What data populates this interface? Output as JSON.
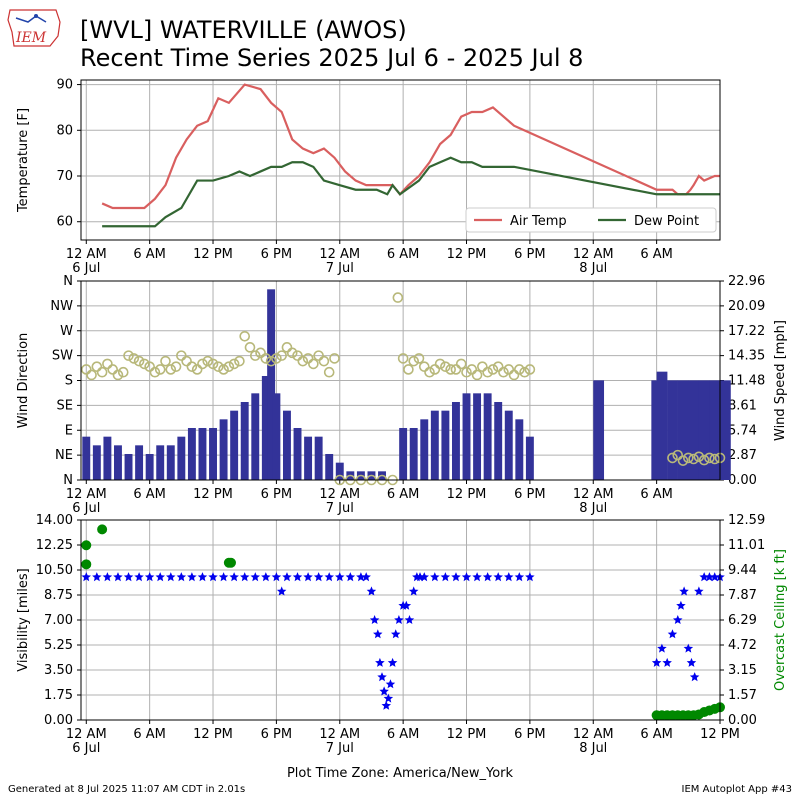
{
  "title_line1": "[WVL] WATERVILLE (AWOS)",
  "title_line2": "Recent Time Series 2025 Jul 6 - 2025 Jul 8",
  "logo_text": "IEM",
  "footer_left": "Generated at 8 Jul 2025 11:07 AM CDT in 2.01s",
  "footer_right": "IEM Autoplot App #43",
  "colors": {
    "air_temp": "#d95f5f",
    "dew_point": "#336633",
    "wind_dir_marker": "#b8b87a",
    "wind_speed_bar": "#333399",
    "visibility": "#0000ee",
    "ceiling": "#008800",
    "grid": "#b0b0b0"
  },
  "time_axis": {
    "label": "Plot Time Zone: America/New_York",
    "tick_labels": [
      "12 AM",
      "6 AM",
      "12 PM",
      "6 PM",
      "12 AM",
      "6 AM",
      "12 PM",
      "6 PM",
      "12 AM",
      "6 AM",
      "12 PM"
    ],
    "day_labels": [
      {
        "hour": 0,
        "text": "6 Jul"
      },
      {
        "hour": 24,
        "text": "7 Jul"
      },
      {
        "hour": 48,
        "text": "8 Jul"
      }
    ]
  },
  "chart_data": [
    {
      "type": "line",
      "ylabel": "Temperature [F]",
      "ylim": [
        56,
        91
      ],
      "yticks": [
        60,
        70,
        80,
        90
      ],
      "xlim": [
        -0.5,
        60
      ],
      "tick_hours": [
        0,
        6,
        12,
        18,
        24,
        30,
        36,
        42,
        48,
        54
      ],
      "grid": true,
      "legend_position": "bottom-right",
      "series": [
        {
          "name": "Air Temp",
          "x": [
            1.5,
            2.5,
            4,
            5.5,
            6.5,
            7.5,
            8.5,
            9.5,
            10.5,
            11.5,
            12.5,
            13.5,
            15,
            16.5,
            17.5,
            18.5,
            19.5,
            20.5,
            21.5,
            22.5,
            23.5,
            24.5,
            25.5,
            26.5,
            27.5,
            29,
            29.7,
            30.5,
            31.5,
            32.5,
            33.5,
            34.5,
            35.5,
            36.5,
            37.5,
            38.5,
            40.5,
            54,
            55.5,
            56,
            56.8,
            57.2,
            57.5,
            58,
            58.5,
            59.5,
            60
          ],
          "y": [
            64,
            63,
            63,
            63,
            65,
            68,
            74,
            78,
            81,
            82,
            87,
            86,
            90,
            89,
            86,
            84,
            78,
            76,
            75,
            76,
            74,
            71,
            69,
            68,
            68,
            68,
            66,
            68,
            70,
            73,
            77,
            79,
            83,
            84,
            84,
            85,
            81,
            67,
            67,
            66,
            66,
            67,
            68,
            70,
            69,
            70,
            70
          ]
        },
        {
          "name": "Dew Point",
          "x": [
            1.5,
            4,
            6.5,
            7.5,
            9,
            10.5,
            12,
            13.5,
            14.5,
            15.5,
            16.5,
            17.5,
            18.5,
            19.5,
            20.5,
            21.5,
            22.5,
            24,
            25.5,
            26.5,
            27.5,
            28.5,
            29,
            29.7,
            31.5,
            32.5,
            33.5,
            34.5,
            35.5,
            36.5,
            37.5,
            38.5,
            40.5,
            54,
            55.5,
            57,
            57.5,
            58.5,
            59.5,
            60
          ],
          "y": [
            59,
            59,
            59,
            61,
            63,
            69,
            69,
            70,
            71,
            70,
            71,
            72,
            72,
            73,
            73,
            72,
            69,
            68,
            67,
            67,
            67,
            66,
            68,
            66,
            69,
            72,
            73,
            74,
            73,
            73,
            72,
            72,
            72,
            66,
            66,
            66,
            66,
            66,
            66,
            66
          ]
        }
      ]
    },
    {
      "type": "bar",
      "ylabel": "Wind Direction",
      "y2label": "Wind Speed [mph]",
      "ylim": [
        0,
        360
      ],
      "yticks": [
        "N",
        "NE",
        "E",
        "SE",
        "S",
        "SW",
        "W",
        "NW",
        "N"
      ],
      "y2lim": [
        0,
        22.96
      ],
      "y2ticks": [
        "0.00",
        "2.87",
        "5.74",
        "8.61",
        "11.48",
        "14.35",
        "17.22",
        "20.09",
        "22.96"
      ],
      "grid": true,
      "series": [
        {
          "name": "Wind Speed",
          "x": [
            0,
            1,
            2,
            3,
            4,
            5,
            6,
            7,
            8,
            9,
            10,
            11,
            12,
            13,
            14,
            15,
            16,
            17,
            17.5,
            18,
            19,
            20,
            21,
            22,
            23,
            24,
            25,
            26,
            27,
            28,
            29,
            30,
            31,
            32,
            33,
            34,
            35,
            36,
            37,
            38,
            39,
            40,
            41,
            42,
            48,
            53.5,
            54,
            55,
            56,
            57,
            58,
            59,
            60
          ],
          "y": [
            5,
            4,
            5,
            4,
            3,
            4,
            3,
            4,
            4,
            5,
            6,
            6,
            6,
            7,
            8,
            9,
            10,
            12,
            22,
            10,
            8,
            6,
            5,
            5,
            3,
            2,
            1,
            1,
            1,
            1,
            0,
            6,
            6,
            7,
            8,
            8,
            9,
            10,
            10,
            10,
            9,
            8,
            7,
            5,
            11.5,
            11.5,
            12.5,
            11.5,
            11.5,
            11.5,
            11.5,
            11.5,
            11.5
          ]
        },
        {
          "name": "Wind Direction",
          "x": [
            0,
            0.5,
            1,
            1.5,
            2,
            2.5,
            3,
            3.5,
            4,
            4.5,
            5,
            5.5,
            6,
            6.5,
            7,
            7.5,
            8,
            8.5,
            9,
            9.5,
            10,
            10.5,
            11,
            11.5,
            12,
            12.5,
            13,
            13.5,
            14,
            14.5,
            15,
            15.5,
            16,
            16.5,
            17,
            17.5,
            18,
            18.5,
            19,
            19.5,
            20,
            20.5,
            21,
            21.5,
            22,
            22.5,
            23,
            23.5,
            24,
            25,
            26,
            27,
            28,
            29,
            29.5,
            30,
            30.5,
            31,
            31.5,
            32,
            32.5,
            33,
            33.5,
            34,
            34.5,
            35,
            35.5,
            36,
            36.5,
            37,
            37.5,
            38,
            38.5,
            39,
            39.5,
            40,
            40.5,
            41,
            41.5,
            42,
            55.5,
            56,
            56.5,
            57,
            57.5,
            58,
            58.5,
            59,
            59.5,
            60
          ],
          "y": [
            200,
            190,
            205,
            195,
            210,
            200,
            190,
            195,
            225,
            220,
            215,
            210,
            205,
            195,
            200,
            215,
            200,
            205,
            225,
            215,
            205,
            200,
            210,
            215,
            210,
            205,
            200,
            205,
            210,
            215,
            260,
            240,
            225,
            230,
            220,
            215,
            220,
            225,
            240,
            230,
            225,
            215,
            220,
            210,
            225,
            215,
            195,
            220,
            0,
            0,
            0,
            0,
            0,
            0,
            330,
            220,
            200,
            215,
            220,
            205,
            195,
            200,
            210,
            205,
            200,
            200,
            210,
            195,
            200,
            190,
            205,
            195,
            200,
            205,
            195,
            200,
            190,
            200,
            195,
            200,
            40,
            45,
            35,
            40,
            38,
            42,
            36,
            40,
            38,
            40
          ]
        }
      ]
    },
    {
      "type": "scatter",
      "ylabel": "Visibility [miles]",
      "y2label": "Overcast Ceiling [k ft]",
      "ylim": [
        0,
        14
      ],
      "yticks": [
        "0.00",
        "1.75",
        "3.50",
        "5.25",
        "7.00",
        "8.75",
        "10.50",
        "12.25",
        "14.00"
      ],
      "y2lim": [
        0,
        12.59
      ],
      "y2ticks": [
        "0.00",
        "1.57",
        "3.15",
        "4.72",
        "6.29",
        "7.87",
        "9.44",
        "11.01",
        "12.59"
      ],
      "grid": true,
      "series": [
        {
          "name": "Visibility",
          "x": [
            0,
            1,
            2,
            3,
            4,
            5,
            6,
            7,
            8,
            9,
            10,
            11,
            12,
            13,
            14,
            15,
            16,
            17,
            18,
            18.5,
            19,
            20,
            21,
            22,
            23,
            24,
            25,
            26,
            26.5,
            27,
            27.3,
            27.6,
            27.8,
            28,
            28.2,
            28.4,
            28.6,
            28.8,
            29,
            29.3,
            29.6,
            30,
            30.3,
            30.6,
            31,
            31.3,
            31.6,
            32,
            33,
            34,
            35,
            36,
            37,
            38,
            39,
            40,
            41,
            42,
            54,
            54.5,
            55,
            55.5,
            56,
            56.3,
            56.6,
            57,
            57.3,
            57.6,
            58,
            58.5,
            59,
            59.5,
            60
          ],
          "y": [
            10,
            10,
            10,
            10,
            10,
            10,
            10,
            10,
            10,
            10,
            10,
            10,
            10,
            10,
            10,
            10,
            10,
            10,
            10,
            9,
            10,
            10,
            10,
            10,
            10,
            10,
            10,
            10,
            10,
            9,
            7,
            6,
            4,
            3,
            2,
            1,
            1.5,
            2.5,
            4,
            6,
            7,
            8,
            8,
            7,
            9,
            10,
            10,
            10,
            10,
            10,
            10,
            10,
            10,
            10,
            10,
            10,
            10,
            10,
            4,
            5,
            4,
            6,
            7,
            8,
            9,
            5,
            4,
            3,
            9,
            10,
            10,
            10,
            10
          ]
        },
        {
          "name": "Overcast Ceiling",
          "x": [
            0,
            0,
            1.5,
            13.5,
            13.7,
            54,
            54.5,
            55,
            55.5,
            56,
            56.5,
            57,
            57.5,
            58,
            58.5,
            59,
            59.5,
            60
          ],
          "y": [
            11,
            9.8,
            12,
            9.9,
            9.9,
            0.3,
            0.3,
            0.3,
            0.3,
            0.3,
            0.3,
            0.3,
            0.3,
            0.35,
            0.5,
            0.6,
            0.7,
            0.8
          ]
        }
      ]
    }
  ]
}
